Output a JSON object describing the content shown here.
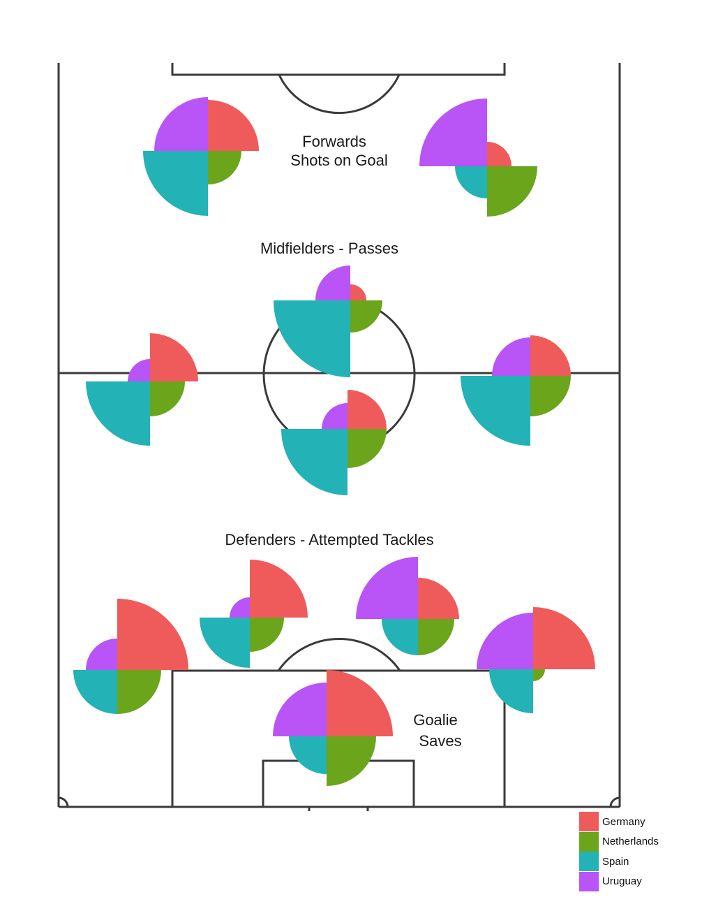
{
  "chart_data": {
    "type": "polar-area (soccer field of rose charts)",
    "legend": {
      "placement": "bottom-right",
      "entries": [
        {
          "name": "Germany",
          "color": "#ef5b5b"
        },
        {
          "name": "Netherlands",
          "color": "#6aa51b"
        },
        {
          "name": "Spain",
          "color": "#23b2b6"
        },
        {
          "name": "Uruguay",
          "color": "#b954f7"
        }
      ]
    },
    "section_labels": {
      "forwards": [
        "Forwards",
        "Shots on Goal"
      ],
      "midfielders": "Midfielders - Passes",
      "defenders": "Defenders - Attempted Tackles",
      "goalie": [
        "Goalie",
        "Saves"
      ]
    },
    "players": [
      {
        "role": "forward",
        "Germany": 73,
        "Netherlands": 48,
        "Spain": 93,
        "Uruguay": 77
      },
      {
        "role": "forward",
        "Germany": 35,
        "Netherlands": 72,
        "Spain": 46,
        "Uruguay": 97
      },
      {
        "role": "midfielder",
        "Germany": 23,
        "Netherlands": 46,
        "Spain": 110,
        "Uruguay": 50
      },
      {
        "role": "midfielder",
        "Germany": 69,
        "Netherlands": 50,
        "Spain": 92,
        "Uruguay": 32
      },
      {
        "role": "midfielder",
        "Germany": 58,
        "Netherlands": 58,
        "Spain": 100,
        "Uruguay": 55
      },
      {
        "role": "midfielder",
        "Germany": 56,
        "Netherlands": 56,
        "Spain": 95,
        "Uruguay": 37
      },
      {
        "role": "defender",
        "Germany": 102,
        "Netherlands": 63,
        "Spain": 63,
        "Uruguay": 45
      },
      {
        "role": "defender",
        "Germany": 83,
        "Netherlands": 49,
        "Spain": 72,
        "Uruguay": 29
      },
      {
        "role": "defender",
        "Germany": 59,
        "Netherlands": 52,
        "Spain": 52,
        "Uruguay": 89
      },
      {
        "role": "defender",
        "Germany": 89,
        "Netherlands": 17,
        "Spain": 63,
        "Uruguay": 81
      },
      {
        "role": "goalie",
        "Germany": 95,
        "Netherlands": 71,
        "Spain": 54,
        "Uruguay": 77
      }
    ]
  }
}
